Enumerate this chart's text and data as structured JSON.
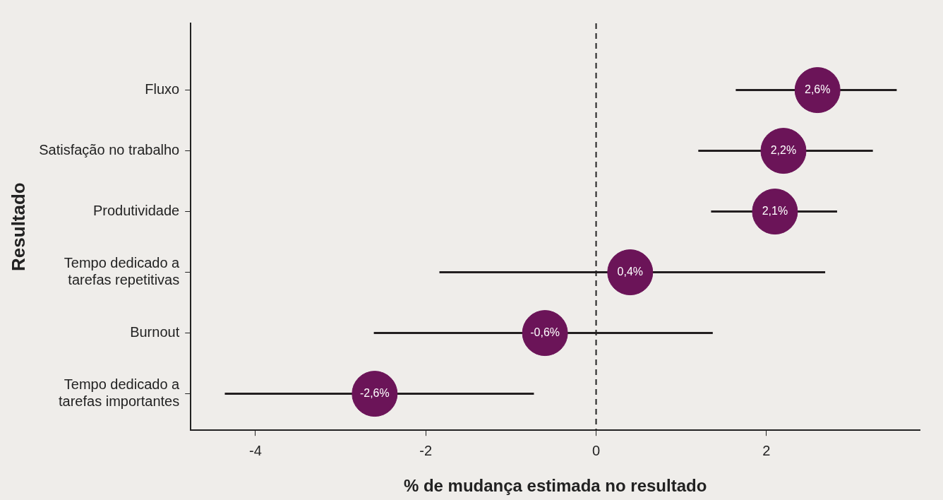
{
  "chart_data": {
    "type": "scatter",
    "orientation": "horizontal",
    "xlabel": "% de mudança estimada no resultado",
    "ylabel": "Resultado",
    "categories": [
      "Fluxo",
      "Satisfação no trabalho",
      "Produtividade",
      "Tempo dedicado a\ntarefas repetitivas",
      "Burnout",
      "Tempo dedicado a\ntarefas importantes"
    ],
    "values": [
      2.6,
      2.2,
      2.1,
      0.4,
      -0.6,
      -2.6
    ],
    "value_labels": [
      "2,6%",
      "2,2%",
      "2,1%",
      "0,4%",
      "-0,6%",
      "-2,6%"
    ],
    "errors": [
      [
        1.64,
        3.53
      ],
      [
        1.2,
        3.25
      ],
      [
        1.35,
        2.83
      ],
      [
        -1.84,
        2.69
      ],
      [
        -2.61,
        1.37
      ],
      [
        -4.36,
        -0.73
      ]
    ],
    "color": "#6b1458",
    "marker": "circle",
    "grid": false,
    "legend": false,
    "xlim": [
      -4.76,
      3.8
    ],
    "xticks": [
      -4,
      -2,
      0,
      2
    ],
    "ref_lines": [
      {
        "axis": "x",
        "value": 0,
        "line_style": "dashed",
        "color": "#222222"
      }
    ]
  }
}
